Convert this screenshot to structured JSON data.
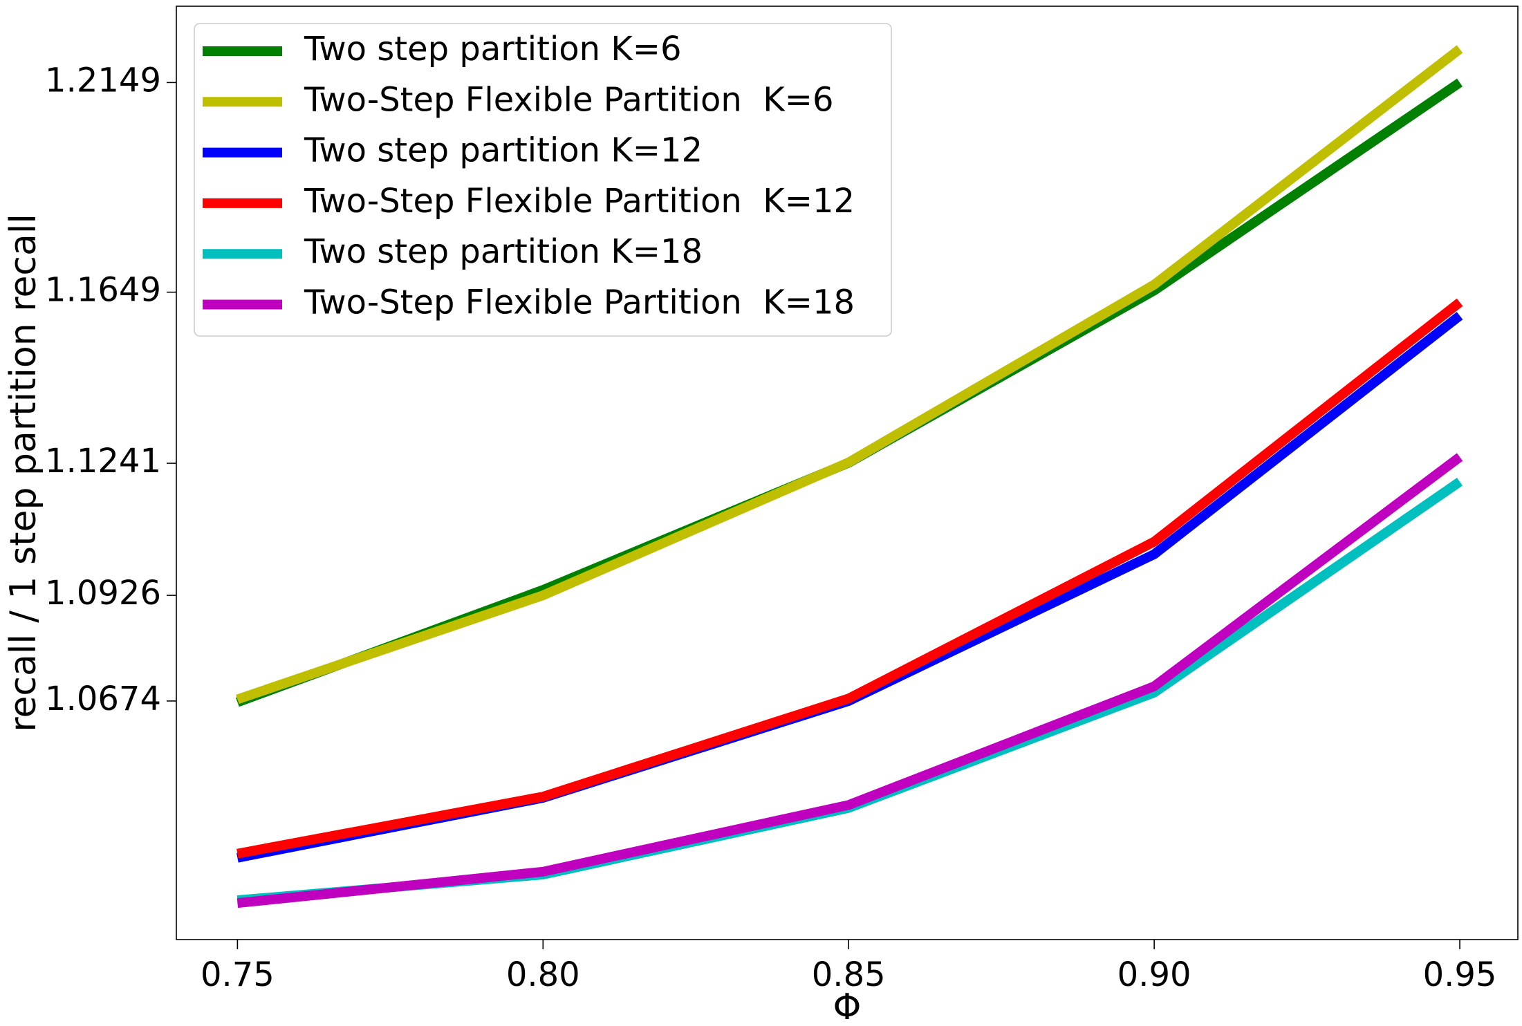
{
  "chart_data": {
    "type": "line",
    "title": "",
    "xlabel": "Φ",
    "ylabel": "recall / 1 step partition recall",
    "x": [
      0.75,
      0.8,
      0.85,
      0.9,
      0.95
    ],
    "x_tick_labels": [
      "0.75",
      "0.80",
      "0.85",
      "0.90",
      "0.95"
    ],
    "xlim": [
      0.74,
      0.9595
    ],
    "y_ticks": [
      1.0674,
      1.0926,
      1.1241,
      1.1649,
      1.2149
    ],
    "y_tick_labels": [
      "1.0674",
      "1.0926",
      "1.1241",
      "1.1649",
      "1.2149"
    ],
    "ylim": [
      1.0105,
      1.2331
    ],
    "grid": false,
    "legend_position": "top-left",
    "series": [
      {
        "name": "Two step partition K=6",
        "color": "#008000",
        "values": [
          1.0671,
          1.0939,
          1.1242,
          1.1653,
          1.2149
        ]
      },
      {
        "name": "Two-Step Flexible Partition  K=6",
        "color": "#bfbf00",
        "values": [
          1.0678,
          1.0926,
          1.1243,
          1.1667,
          1.2229
        ]
      },
      {
        "name": "Two step partition K=12",
        "color": "#0000ff",
        "values": [
          1.03,
          1.0443,
          1.0674,
          1.1024,
          1.1593
        ]
      },
      {
        "name": "Two-Step Flexible Partition  K=12",
        "color": "#ff0000",
        "values": [
          1.031,
          1.0446,
          1.068,
          1.1054,
          1.1625
        ]
      },
      {
        "name": "Two step partition K=18",
        "color": "#00bfbf",
        "values": [
          1.0199,
          1.026,
          1.0419,
          1.0694,
          1.1197
        ]
      },
      {
        "name": "Two-Step Flexible Partition  K=18",
        "color": "#bf00bf",
        "values": [
          1.0192,
          1.0267,
          1.0426,
          1.0709,
          1.1256
        ]
      }
    ]
  }
}
